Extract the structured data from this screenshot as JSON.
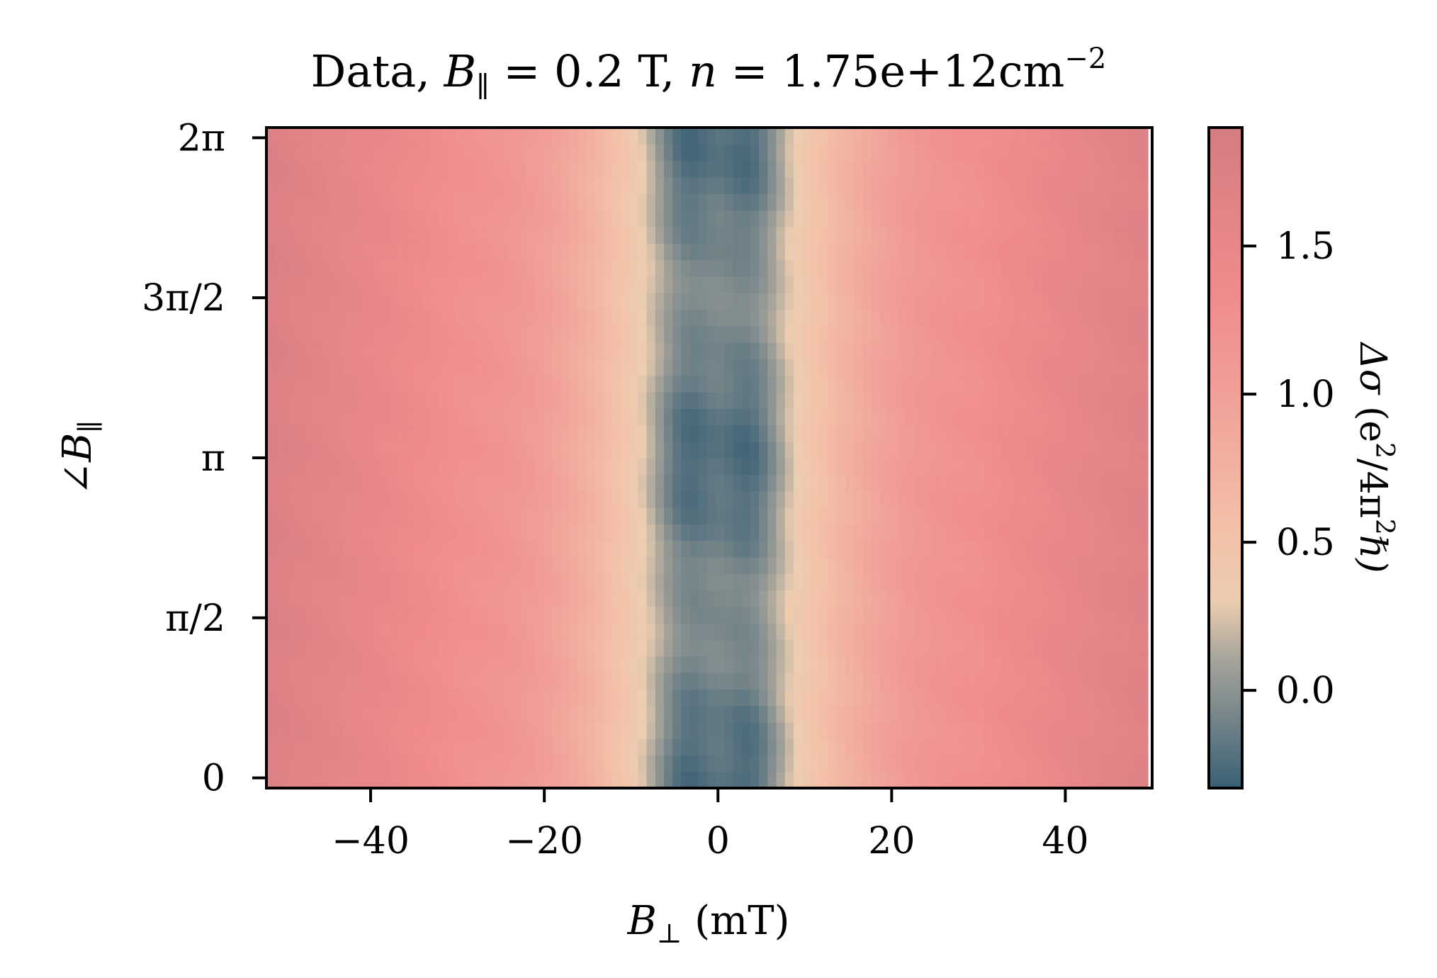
{
  "chart_data": {
    "type": "heatmap",
    "title_parts": {
      "prefix": "Data, ",
      "b_par_symbol": "B",
      "b_par_sub": "∥",
      "b_par_rest": " = 0.2 T, ",
      "n_symbol": "n",
      "n_rest": " = 1.75e+12cm",
      "n_exp": "−2"
    },
    "xlabel_parts": {
      "symbol": "B",
      "sub": "⊥",
      "rest": " (mT)"
    },
    "ylabel_parts": {
      "prefix": "∠",
      "symbol": "B",
      "sub": "∥"
    },
    "colorbar_label_parts": {
      "delta": "Δσ",
      "open": " (e",
      "sup1": "2",
      "mid": "/4π",
      "sup2": "2",
      "end": "ℏ)"
    },
    "xlim": [
      -52,
      50
    ],
    "ylim": [
      -0.1,
      6.383
    ],
    "data_x_range": [
      -52,
      49.5
    ],
    "x_ticks": [
      -40,
      -20,
      0,
      20,
      40
    ],
    "x_tick_labels": [
      "−40",
      "−20",
      "0",
      "20",
      "40"
    ],
    "y_ticks": [
      0,
      1.5708,
      3.1416,
      4.7124,
      6.2832
    ],
    "y_tick_labels": [
      "0",
      "π/2",
      "π",
      "3π/2",
      "2π"
    ],
    "colorbar": {
      "vmin": -0.33,
      "vmax": 1.9,
      "ticks": [
        0.0,
        0.5,
        1.0,
        1.5
      ],
      "tick_labels": [
        "0.0",
        "0.5",
        "1.0",
        "1.5"
      ],
      "colormap": [
        [
          -0.33,
          "#3a6075"
        ],
        [
          0.1,
          "#a5a39a"
        ],
        [
          0.3,
          "#eccdb0"
        ],
        [
          0.55,
          "#f3c0a8"
        ],
        [
          1.0,
          "#f1a098"
        ],
        [
          1.35,
          "#ef8b8c"
        ],
        [
          1.9,
          "#d47d83"
        ]
      ]
    },
    "model": {
      "description_values": {
        "center_dip_mT": [
          -4,
          4
        ],
        "dip_width_mT": 3.2,
        "dip_depth_at_0_and_pi": 0.33,
        "dip_depth_at_half_pi": 0.12,
        "saturation_value": 1.3,
        "edge_value": 1.75
      }
    }
  }
}
